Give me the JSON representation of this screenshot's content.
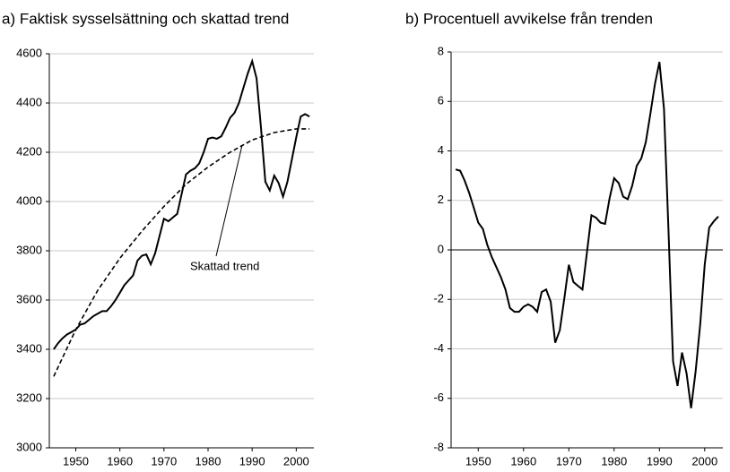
{
  "chart_data": [
    {
      "type": "line",
      "title": "a) Faktisk sysselsättning och skattad trend",
      "x": [
        1945,
        1946,
        1947,
        1948,
        1949,
        1950,
        1951,
        1952,
        1953,
        1954,
        1955,
        1956,
        1957,
        1958,
        1959,
        1960,
        1961,
        1962,
        1963,
        1964,
        1965,
        1966,
        1967,
        1968,
        1969,
        1970,
        1971,
        1972,
        1973,
        1974,
        1975,
        1976,
        1977,
        1978,
        1979,
        1980,
        1981,
        1982,
        1983,
        1984,
        1985,
        1986,
        1987,
        1988,
        1989,
        1990,
        1991,
        1992,
        1993,
        1994,
        1995,
        1996,
        1997,
        1998,
        1999,
        2000,
        2001,
        2002,
        2003
      ],
      "series": [
        {
          "color": "#000000",
          "dashed": false,
          "values": [
            3400,
            3425,
            3445,
            3460,
            3470,
            3480,
            3500,
            3505,
            3520,
            3535,
            3545,
            3555,
            3555,
            3575,
            3600,
            3630,
            3660,
            3680,
            3700,
            3760,
            3780,
            3785,
            3745,
            3790,
            3860,
            3930,
            3920,
            3935,
            3950,
            4030,
            4110,
            4125,
            4135,
            4155,
            4200,
            4255,
            4260,
            4255,
            4265,
            4300,
            4340,
            4360,
            4400,
            4460,
            4520,
            4570,
            4500,
            4300,
            4080,
            4045,
            4105,
            4075,
            4020,
            4080,
            4170,
            4260,
            4345,
            4355,
            4345
          ]
        },
        {
          "color": "#000000",
          "dashed": true,
          "x": [
            1945,
            1950,
            1955,
            1960,
            1965,
            1970,
            1975,
            1980,
            1985,
            1990,
            1995,
            2000,
            2003
          ],
          "values": [
            3290,
            3480,
            3640,
            3770,
            3880,
            3980,
            4070,
            4140,
            4200,
            4250,
            4280,
            4295,
            4295
          ]
        }
      ],
      "annotation": "Skattad trend",
      "xlim": [
        1944,
        2004
      ],
      "xticks": [
        1950,
        1960,
        1970,
        1980,
        1990,
        2000
      ],
      "ylim": [
        3000,
        4600
      ],
      "yticks": [
        3000,
        3200,
        3400,
        3600,
        3800,
        4000,
        4200,
        4400,
        4600
      ],
      "grid": true
    },
    {
      "type": "line",
      "title": "b) Procentuell avvikelse från trenden",
      "x": [
        1945,
        1946,
        1947,
        1948,
        1949,
        1950,
        1951,
        1952,
        1953,
        1954,
        1955,
        1956,
        1957,
        1958,
        1959,
        1960,
        1961,
        1962,
        1963,
        1964,
        1965,
        1966,
        1967,
        1968,
        1969,
        1970,
        1971,
        1972,
        1973,
        1974,
        1975,
        1976,
        1977,
        1978,
        1979,
        1980,
        1981,
        1982,
        1983,
        1984,
        1985,
        1986,
        1987,
        1988,
        1989,
        1990,
        1991,
        1992,
        1993,
        1994,
        1995,
        1996,
        1997,
        1998,
        1999,
        2000,
        2001,
        2002,
        2003
      ],
      "series": [
        {
          "color": "#000000",
          "dashed": false,
          "values": [
            3.25,
            3.2,
            2.8,
            2.3,
            1.7,
            1.1,
            0.85,
            0.2,
            -0.3,
            -0.7,
            -1.1,
            -1.6,
            -2.35,
            -2.5,
            -2.5,
            -2.3,
            -2.2,
            -2.3,
            -2.5,
            -1.7,
            -1.6,
            -2.1,
            -3.75,
            -3.25,
            -1.95,
            -0.6,
            -1.3,
            -1.45,
            -1.6,
            -0.1,
            1.4,
            1.3,
            1.1,
            1.05,
            2.1,
            2.9,
            2.7,
            2.15,
            2.05,
            2.6,
            3.4,
            3.7,
            4.35,
            5.5,
            6.7,
            7.6,
            5.7,
            0.8,
            -4.5,
            -5.5,
            -4.15,
            -5.0,
            -6.4,
            -4.9,
            -3.0,
            -0.6,
            0.9,
            1.15,
            1.35
          ]
        }
      ],
      "zero_line": true,
      "xlim": [
        1944,
        2004
      ],
      "xticks": [
        1950,
        1960,
        1970,
        1980,
        1990,
        2000
      ],
      "ylim": [
        -8,
        8
      ],
      "yticks": [
        -8,
        -6,
        -4,
        -2,
        0,
        2,
        4,
        6,
        8
      ],
      "grid": true
    }
  ]
}
